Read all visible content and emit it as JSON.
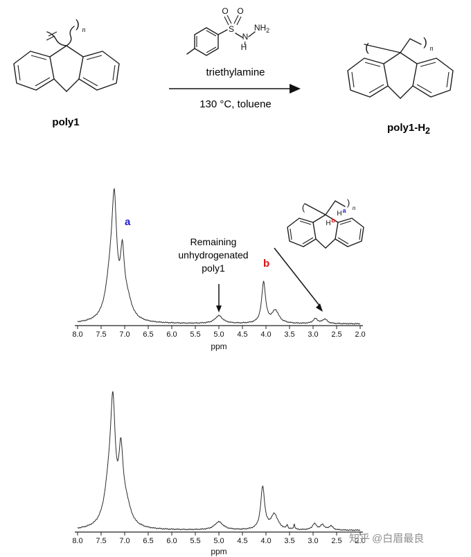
{
  "colors": {
    "label_a_blue": "#2020cc",
    "label_b_red": "#e01010",
    "trace": "#2b2b2b",
    "watermark_gray": "#8e8e8e"
  },
  "scheme": {
    "reactant_label": "poly1",
    "reactant_n": "n",
    "reactant_close_bracket": ")",
    "product_label_main": "poly1-H",
    "product_label_sub": "2",
    "product_n": "n",
    "product_open_bracket": "(",
    "product_close_bracket": ")",
    "reagent": {
      "O_left": "O",
      "O_right": "O",
      "S": "S",
      "N": "N",
      "H": "H",
      "NH": "NH",
      "NH_sub": "2"
    },
    "conditions_line1": "triethylamine",
    "conditions_line2": "130 °C, toluene"
  },
  "nmr_top": {
    "peak_label_a": "a",
    "peak_label_b": "b",
    "annotation_lines": [
      "Remaining",
      "unhydrogenated",
      "poly1"
    ],
    "inset": {
      "open_bracket": "(",
      "close_bracket": ")",
      "n": "n",
      "H_b": "H",
      "sup_b": "b",
      "H_a": "H",
      "sup_a": "a"
    },
    "axis_ticks": [
      "8.0",
      "7.5",
      "7.0",
      "6.5",
      "6.0",
      "5.5",
      "5.0",
      "4.5",
      "4.0",
      "3.5",
      "3.0",
      "2.5",
      "2.0"
    ],
    "axis_unit": "ppm"
  },
  "nmr_bottom": {
    "axis_ticks": [
      "8.0",
      "7.5",
      "7.0",
      "6.5",
      "6.0",
      "5.5",
      "5.0",
      "4.5",
      "4.0",
      "3.5",
      "3.0",
      "2.5",
      "2.0"
    ],
    "axis_unit": "ppm"
  },
  "watermark": {
    "brand": "知乎",
    "handle": "@白眉最良"
  },
  "chart_data": [
    {
      "type": "line",
      "id": "nmr_top_spectrum",
      "xlabel": "ppm",
      "x_range": [
        8.0,
        2.0
      ],
      "x_axis_reversed": true,
      "x_ticks": [
        8.0,
        7.5,
        7.0,
        6.5,
        6.0,
        5.5,
        5.0,
        4.5,
        4.0,
        3.5,
        3.0,
        2.5,
        2.0
      ],
      "peaks": [
        {
          "ppm": 7.3,
          "rel_intensity": 0.45,
          "width_ppm": 0.12
        },
        {
          "ppm": 7.22,
          "rel_intensity": 1.0,
          "width_ppm": 0.06,
          "assignment": "a (aromatic H)"
        },
        {
          "ppm": 7.05,
          "rel_intensity": 0.55,
          "width_ppm": 0.05
        },
        {
          "ppm": 6.95,
          "rel_intensity": 0.2,
          "width_ppm": 0.12
        },
        {
          "ppm": 5.0,
          "rel_intensity": 0.08,
          "width_ppm": 0.1,
          "assignment": "remaining unhydrogenated poly1"
        },
        {
          "ppm": 4.05,
          "rel_intensity": 0.42,
          "width_ppm": 0.05,
          "assignment": "b (bridgehead CH)"
        },
        {
          "ppm": 3.8,
          "rel_intensity": 0.13,
          "width_ppm": 0.09
        },
        {
          "ppm": 2.95,
          "rel_intensity": 0.05,
          "width_ppm": 0.06
        },
        {
          "ppm": 2.75,
          "rel_intensity": 0.045,
          "width_ppm": 0.06
        }
      ]
    },
    {
      "type": "line",
      "id": "nmr_bottom_spectrum",
      "xlabel": "ppm",
      "x_range": [
        8.0,
        2.0
      ],
      "x_axis_reversed": true,
      "x_ticks": [
        8.0,
        7.5,
        7.0,
        6.5,
        6.0,
        5.5,
        5.0,
        4.5,
        4.0,
        3.5,
        3.0,
        2.5,
        2.0
      ],
      "peaks": [
        {
          "ppm": 7.33,
          "rel_intensity": 0.4,
          "width_ppm": 0.12
        },
        {
          "ppm": 7.25,
          "rel_intensity": 1.0,
          "width_ppm": 0.06
        },
        {
          "ppm": 7.08,
          "rel_intensity": 0.62,
          "width_ppm": 0.055
        },
        {
          "ppm": 6.97,
          "rel_intensity": 0.2,
          "width_ppm": 0.12
        },
        {
          "ppm": 5.0,
          "rel_intensity": 0.08,
          "width_ppm": 0.11
        },
        {
          "ppm": 4.07,
          "rel_intensity": 0.42,
          "width_ppm": 0.05
        },
        {
          "ppm": 3.82,
          "rel_intensity": 0.15,
          "width_ppm": 0.09
        },
        {
          "ppm": 3.55,
          "rel_intensity": 0.04,
          "width_ppm": 0.015
        },
        {
          "ppm": 3.4,
          "rel_intensity": 0.05,
          "width_ppm": 0.015
        },
        {
          "ppm": 2.97,
          "rel_intensity": 0.06,
          "width_ppm": 0.055
        },
        {
          "ppm": 2.8,
          "rel_intensity": 0.05,
          "width_ppm": 0.05
        },
        {
          "ppm": 2.62,
          "rel_intensity": 0.04,
          "width_ppm": 0.05
        }
      ]
    }
  ]
}
